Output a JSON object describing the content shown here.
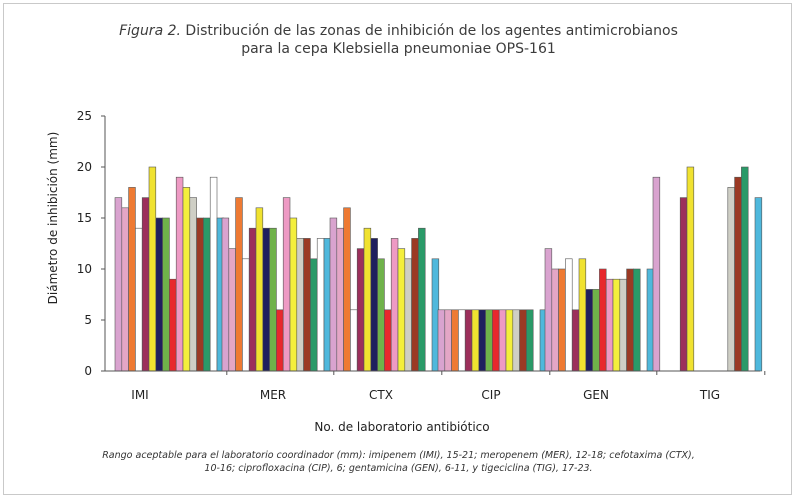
{
  "figure": {
    "label": "Figura 2.",
    "title_line1": "Distribución de las zonas de inhibición de los agentes antimicrobianos",
    "title_line2": "para la cepa Klebsiella pneumoniae OPS-161"
  },
  "footnote": {
    "line1": "Rango aceptable para el laboratorio coordinador (mm): imipenem (IMI), 15-21; meropenem (MER), 12-18; cefotaxima (CTX),",
    "line2": "10-16; ciprofloxacina (CIP), 6; gentamicina (GEN), 6-11, y tigeciclina (TIG), 17-23."
  },
  "chart_data": {
    "type": "bar",
    "title": "",
    "xlabel": "No. de laboratorio antibiótico",
    "ylabel": "Diámetro de inhibición (mm)",
    "ylim": [
      0,
      25
    ],
    "yticks": [
      0,
      5,
      10,
      15,
      20,
      25
    ],
    "grid": false,
    "legend": "none",
    "categories": [
      "IMI",
      "MER",
      "CTX",
      "CIP",
      "GEN",
      "TIG"
    ],
    "bar_colors": [
      "#d9a3cf",
      "#e4a6c6",
      "#ee7a33",
      "#ffffff",
      "#9c2f5b",
      "#f0e230",
      "#1f1f5e",
      "#6fb24a",
      "#e8282d",
      "#ee9ac4",
      "#f4ef3c",
      "#cfcfc5",
      "#9b3a24",
      "#2a9a68",
      "#ffffff",
      "#4fb8dc"
    ],
    "series_values": [
      [
        17,
        15,
        15,
        6,
        12,
        19
      ],
      [
        16,
        12,
        14,
        6,
        10,
        0
      ],
      [
        18,
        17,
        16,
        6,
        10,
        0
      ],
      [
        14,
        11,
        6,
        6,
        11,
        0
      ],
      [
        17,
        14,
        12,
        6,
        6,
        17
      ],
      [
        20,
        16,
        14,
        6,
        11,
        20
      ],
      [
        15,
        14,
        13,
        6,
        8,
        0
      ],
      [
        15,
        14,
        11,
        6,
        8,
        0
      ],
      [
        9,
        6,
        6,
        6,
        10,
        0
      ],
      [
        19,
        17,
        13,
        6,
        9,
        0
      ],
      [
        18,
        15,
        12,
        6,
        9,
        0
      ],
      [
        17,
        13,
        11,
        6,
        9,
        18
      ],
      [
        15,
        13,
        13,
        6,
        10,
        19
      ],
      [
        15,
        11,
        14,
        6,
        10,
        20
      ],
      [
        19,
        13,
        0,
        0,
        0,
        0
      ],
      [
        15,
        13,
        11,
        6,
        10,
        17
      ]
    ]
  }
}
